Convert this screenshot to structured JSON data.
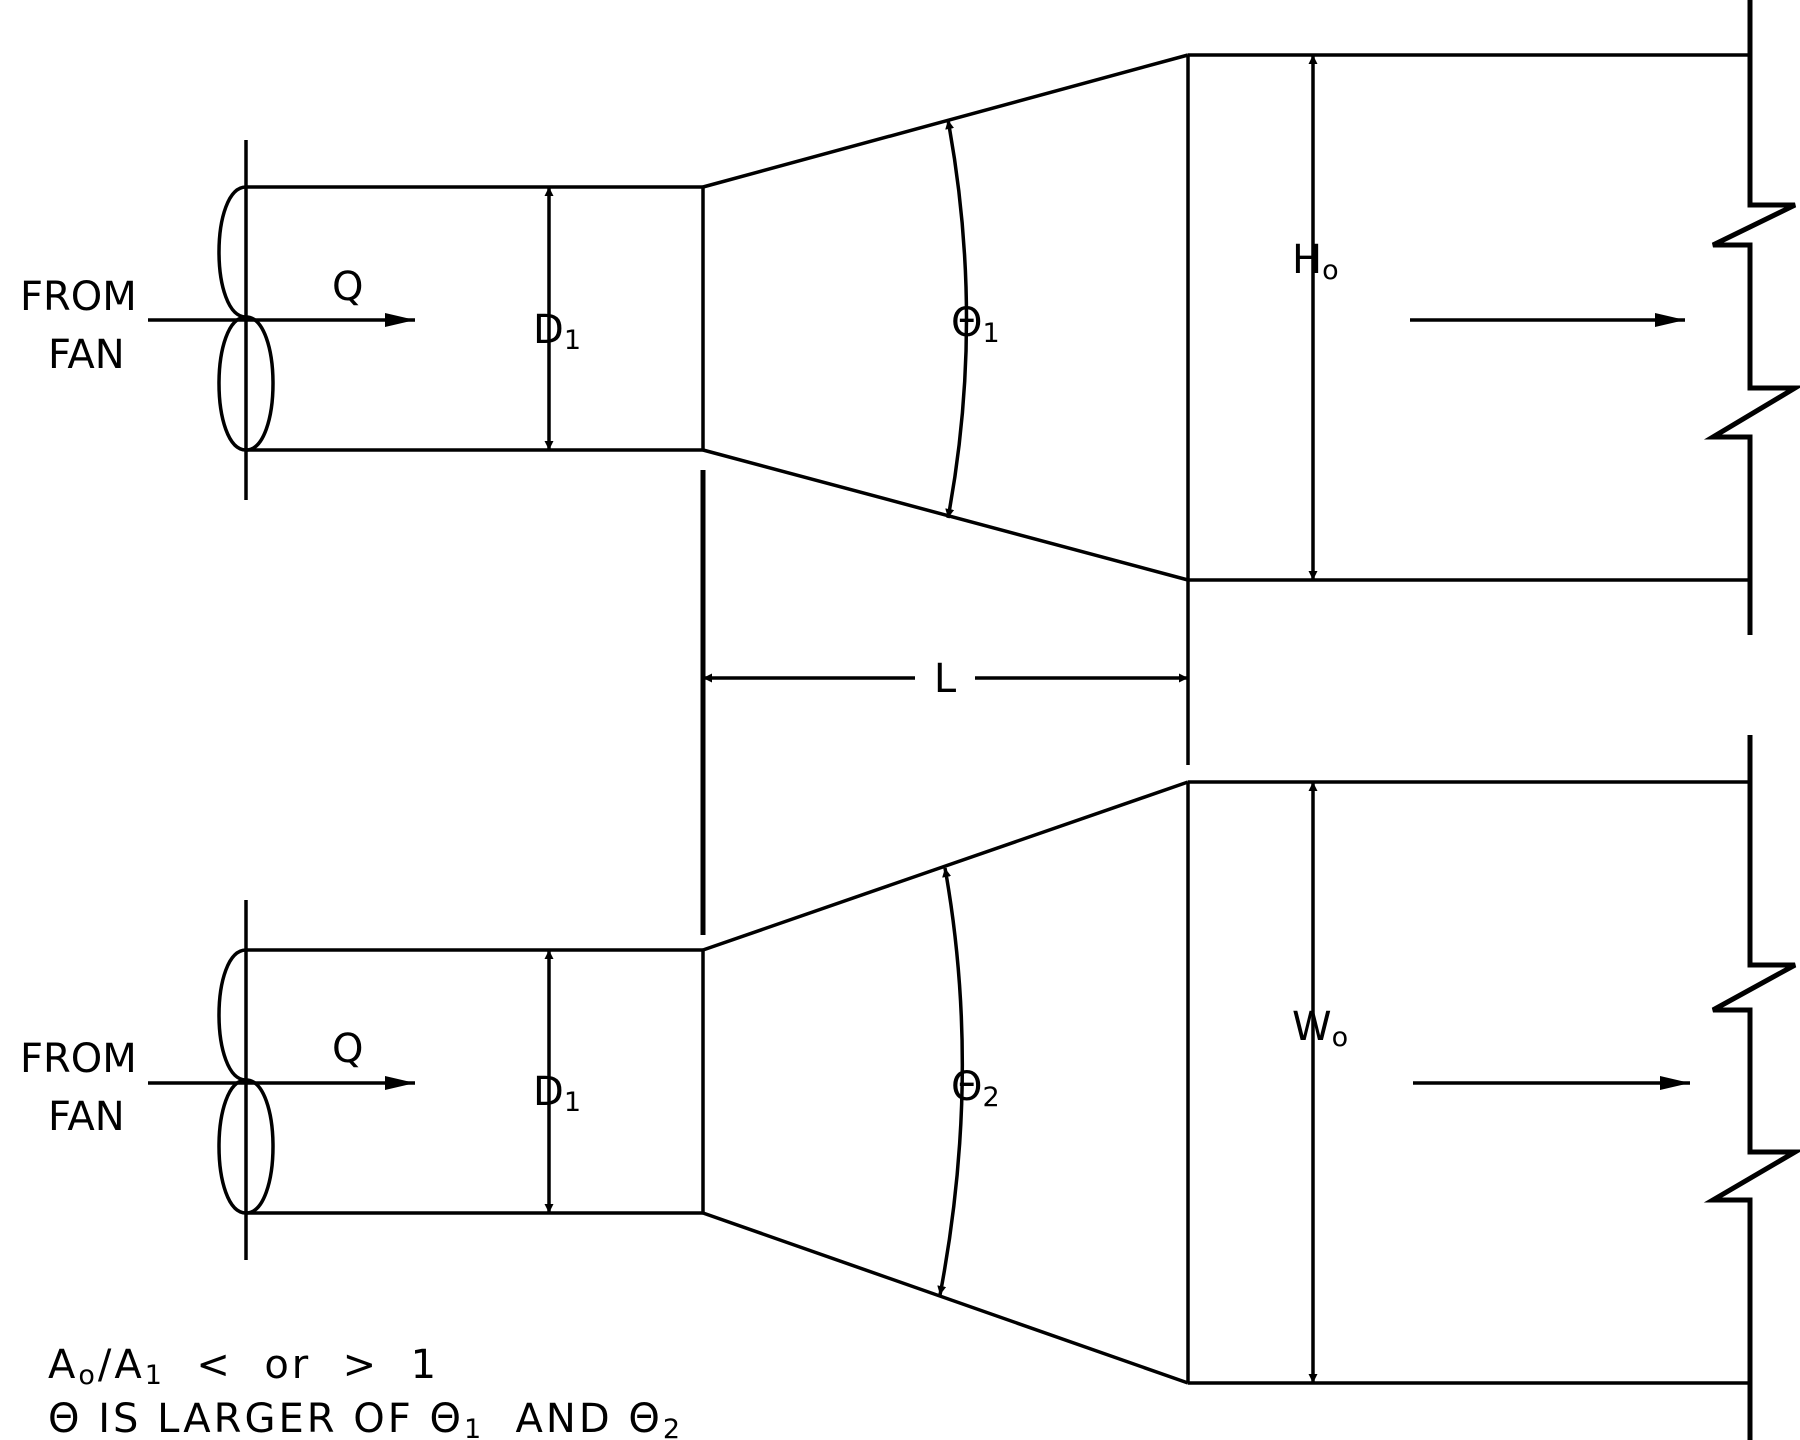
{
  "labels": {
    "from": "FROM",
    "fan": "FAN",
    "flow": "Q",
    "inlet_diameter": {
      "main": "D",
      "sub": "1"
    },
    "height_outlet": {
      "main": "H",
      "sub": "o"
    },
    "width_outlet": {
      "main": "W",
      "sub": "o"
    },
    "theta1": {
      "main": "Θ",
      "sub": "1"
    },
    "theta2": {
      "main": "Θ",
      "sub": "2"
    },
    "length": "L"
  },
  "notes": {
    "line1": {
      "a0_main": "A",
      "a0_sub": "o",
      "slash": "/",
      "a1_main": "A",
      "a1_sub": "1",
      "rest": "  <  or  >  1"
    },
    "line2": {
      "theta": "Θ",
      "text1": " IS LARGER OF ",
      "t1_main": "Θ",
      "t1_sub": "1",
      "text2": "  AND ",
      "t2_main": "Θ",
      "t2_sub": "2"
    }
  },
  "colors": {
    "stroke": "#000000",
    "background": "#ffffff"
  }
}
